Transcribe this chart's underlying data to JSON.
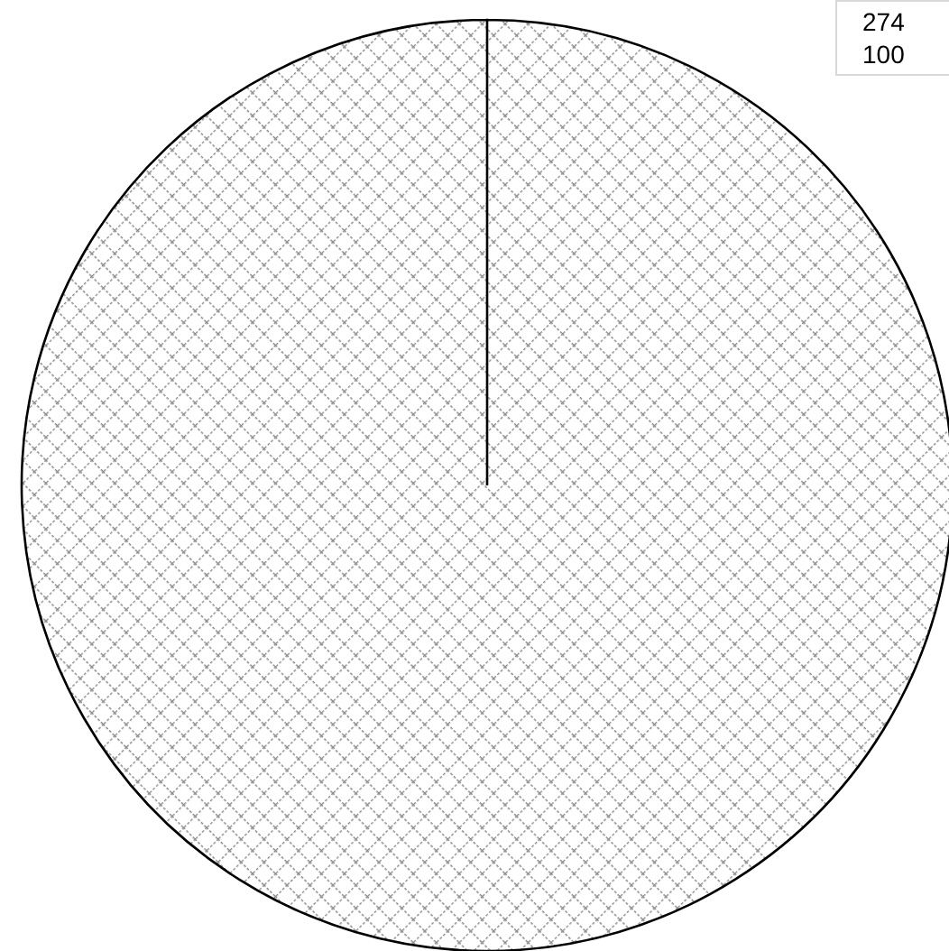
{
  "chart_data": {
    "type": "pie",
    "categories": [
      null
    ],
    "values": [
      100
    ],
    "colors": [
      "#8c8c8c"
    ],
    "annotations": [
      "274"
    ],
    "data_labels": true
  }
}
